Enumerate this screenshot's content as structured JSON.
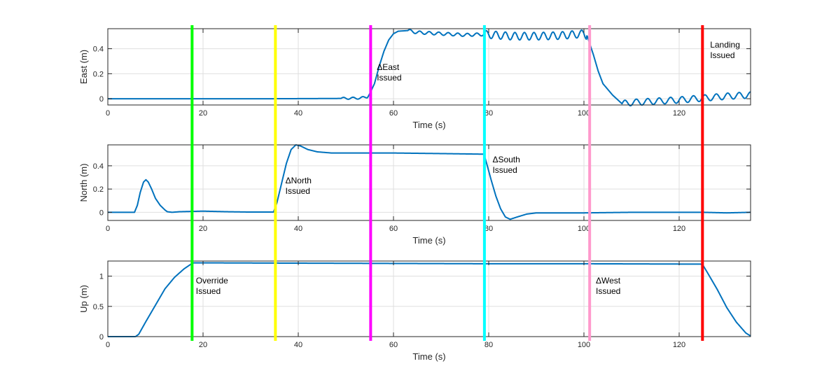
{
  "chart_data": [
    {
      "type": "line",
      "xlabel": "Time (s)",
      "ylabel": "East (m)",
      "xlim": [
        0,
        135
      ],
      "ylim": [
        -0.05,
        0.56
      ],
      "xticks": [
        0,
        20,
        40,
        60,
        80,
        100,
        120
      ],
      "yticks": [
        0,
        0.2,
        0.4
      ],
      "ytick_labels": [
        "0",
        "0.2",
        "0.4"
      ],
      "grid": true,
      "series": [
        {
          "color": "#0072bd",
          "x": [
            0,
            35,
            48,
            53,
            54.5,
            55,
            56,
            57,
            58,
            59,
            60,
            61,
            63,
            65,
            70,
            75,
            79,
            81,
            85,
            90,
            95,
            100,
            100.7,
            102,
            103,
            104,
            106,
            108,
            110,
            115,
            120,
            125,
            130,
            135
          ],
          "y": [
            0,
            0,
            0.002,
            0.005,
            0.015,
            0.04,
            0.12,
            0.26,
            0.38,
            0.47,
            0.52,
            0.54,
            0.545,
            0.53,
            0.52,
            0.51,
            0.515,
            0.51,
            0.5,
            0.5,
            0.505,
            0.52,
            0.5,
            0.35,
            0.22,
            0.12,
            0.03,
            -0.04,
            -0.03,
            -0.02,
            -0.01,
            0.005,
            0.02,
            0.03
          ],
          "oscillations": [
            {
              "x_start": 49,
              "x_end": 55,
              "amplitude": 0.008,
              "period": 2
            },
            {
              "x_start": 63,
              "x_end": 79,
              "amplitude": 0.012,
              "period": 2
            },
            {
              "x_start": 79,
              "x_end": 100.5,
              "amplitude": 0.03,
              "period": 2
            },
            {
              "x_start": 108,
              "x_end": 135,
              "amplitude": 0.025,
              "period": 2.4
            }
          ]
        }
      ],
      "annotations": [
        {
          "lines": [
            "ΔEast",
            "Issued"
          ],
          "x": 56.5,
          "y": 0.23
        },
        {
          "lines": [
            "Landing",
            "Issued"
          ],
          "x": 126.5,
          "y": 0.41
        }
      ]
    },
    {
      "type": "line",
      "xlabel": "Time (s)",
      "ylabel": "North (m)",
      "xlim": [
        0,
        135
      ],
      "ylim": [
        -0.07,
        0.58
      ],
      "xticks": [
        0,
        20,
        40,
        60,
        80,
        100,
        120
      ],
      "yticks": [
        0,
        0.2,
        0.4
      ],
      "ytick_labels": [
        "0",
        "0.2",
        "0.4"
      ],
      "grid": true,
      "series": [
        {
          "color": "#0072bd",
          "x": [
            0,
            5.6,
            6.2,
            6.8,
            7.5,
            8,
            8.5,
            9.2,
            10,
            11,
            12,
            12.5,
            13.5,
            15,
            20,
            25,
            30,
            34.8,
            35.5,
            36.5,
            37.5,
            38.5,
            39.5,
            40.5,
            42,
            44,
            47,
            50,
            60,
            70,
            79,
            79.5,
            80.5,
            81.5,
            82.5,
            83.5,
            84.5,
            86,
            88,
            90,
            100,
            110,
            120,
            125,
            130,
            135
          ],
          "y": [
            0,
            0,
            0.06,
            0.17,
            0.26,
            0.28,
            0.26,
            0.2,
            0.12,
            0.06,
            0.02,
            0.005,
            0,
            0.005,
            0.01,
            0.005,
            0.002,
            0.002,
            0.08,
            0.25,
            0.42,
            0.54,
            0.58,
            0.57,
            0.54,
            0.52,
            0.51,
            0.51,
            0.51,
            0.505,
            0.5,
            0.43,
            0.28,
            0.14,
            0.03,
            -0.04,
            -0.06,
            -0.04,
            -0.015,
            -0.005,
            -0.005,
            0,
            0,
            0,
            -0.005,
            0
          ],
          "oscillations": []
        }
      ],
      "annotations": [
        {
          "lines": [
            "ΔNorth",
            "Issued"
          ],
          "x": 37.3,
          "y": 0.25
        },
        {
          "lines": [
            "ΔSouth",
            "Issued"
          ],
          "x": 80.8,
          "y": 0.43
        }
      ]
    },
    {
      "type": "line",
      "xlabel": "Time (s)",
      "ylabel": "Up (m)",
      "xlim": [
        0,
        135
      ],
      "ylim": [
        0,
        1.25
      ],
      "xticks": [
        0,
        20,
        40,
        60,
        80,
        100,
        120
      ],
      "yticks": [
        0,
        0.5,
        1
      ],
      "ytick_labels": [
        "0",
        "0.5",
        "1"
      ],
      "grid": true,
      "series": [
        {
          "color": "#0072bd",
          "x": [
            0,
            5.8,
            6.5,
            8,
            10,
            12,
            14,
            16,
            17.5,
            18,
            20,
            40,
            60,
            80,
            100,
            120,
            124.5,
            125,
            126,
            128,
            130,
            132,
            134,
            135
          ],
          "y": [
            0,
            0,
            0.04,
            0.25,
            0.52,
            0.79,
            0.98,
            1.12,
            1.2,
            1.22,
            1.22,
            1.215,
            1.21,
            1.205,
            1.205,
            1.2,
            1.2,
            1.18,
            1.05,
            0.78,
            0.48,
            0.24,
            0.06,
            0.01
          ],
          "oscillations": []
        }
      ],
      "annotations": [
        {
          "lines": [
            "Override",
            "Issued"
          ],
          "x": 18.5,
          "y": 0.88
        },
        {
          "lines": [
            "ΔWest",
            "Issued"
          ],
          "x": 102.5,
          "y": 0.88
        }
      ]
    }
  ],
  "event_lines": [
    {
      "x": 17.7,
      "color": "#00ff00"
    },
    {
      "x": 35.2,
      "color": "#ffff00"
    },
    {
      "x": 55.2,
      "color": "#ff00ff"
    },
    {
      "x": 79.1,
      "color": "#00ffff"
    },
    {
      "x": 101.2,
      "color": "#ff99cc"
    },
    {
      "x": 124.9,
      "color": "#ff0000"
    }
  ]
}
